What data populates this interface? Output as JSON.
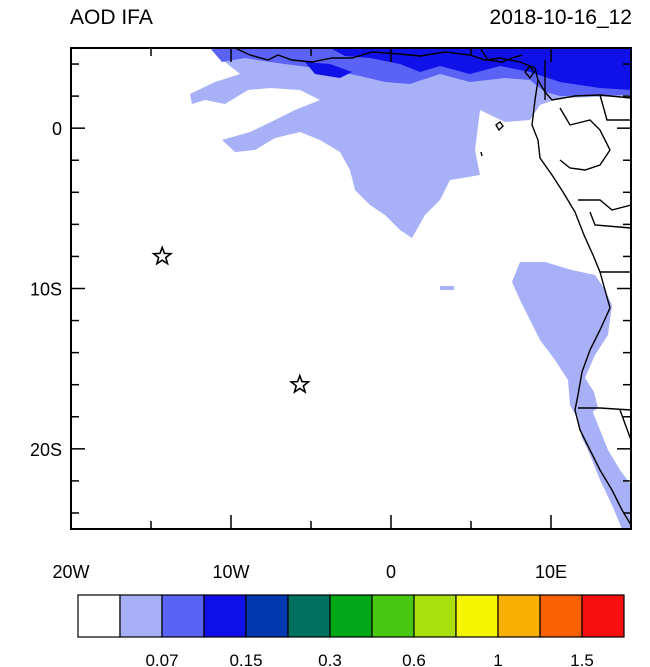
{
  "header": {
    "title_left": "AOD IFA",
    "title_right": "2018-10-16_12"
  },
  "axes": {
    "x_ticks": [
      {
        "value": -20,
        "label": "20W"
      },
      {
        "value": -10,
        "label": "10W"
      },
      {
        "value": 0,
        "label": "0"
      },
      {
        "value": 10,
        "label": "10E"
      }
    ],
    "y_ticks": [
      {
        "value": 0,
        "label": "0"
      },
      {
        "value": -10,
        "label": "10S"
      },
      {
        "value": -20,
        "label": "20S"
      }
    ],
    "lon_range": [
      -20,
      15
    ],
    "lat_range": [
      -25,
      5
    ]
  },
  "colorbar": {
    "colors": [
      "#ffffff",
      "#a8b0f8",
      "#5a63f5",
      "#1010e8",
      "#0038b0",
      "#007060",
      "#00a818",
      "#48c810",
      "#a8e010",
      "#f5f500",
      "#f8b000",
      "#f86000",
      "#f81010"
    ],
    "labels": [
      {
        "boundary": 2,
        "text": "0.07"
      },
      {
        "boundary": 4,
        "text": "0.15"
      },
      {
        "boundary": 6,
        "text": "0.3"
      },
      {
        "boundary": 8,
        "text": "0.6"
      },
      {
        "boundary": 10,
        "text": "1"
      },
      {
        "boundary": 12,
        "text": "1.5"
      }
    ]
  },
  "markers": [
    {
      "name": "star-marker-1",
      "lon": -14.3,
      "lat": -8.0
    },
    {
      "name": "star-marker-2",
      "lon": -5.7,
      "lat": -16.0
    }
  ]
}
